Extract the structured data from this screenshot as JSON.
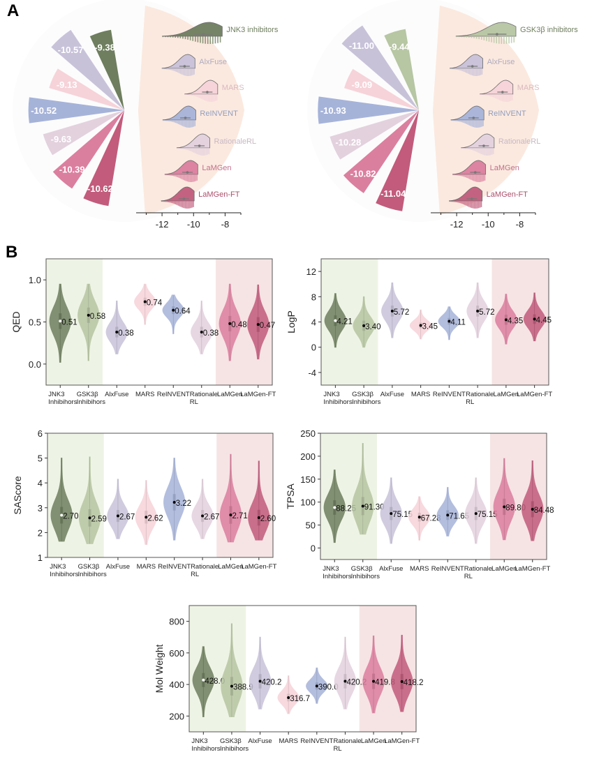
{
  "panels": {
    "a_label": "A",
    "b_label": "B"
  },
  "colors": {
    "JNK3": "#6e7e5e",
    "GSK3": "#b7c6a3",
    "AlxFuse": "#c8c2d9",
    "MARS": "#f6d3d9",
    "ReINVENT": "#a6b3d9",
    "RationaleRL": "#e3d1de",
    "LaMGen": "#db7f9f",
    "LaMGenFT": "#c25b7c",
    "green_band": "#eef4e5",
    "pink_band": "#f6e4e4",
    "fan_bg": "#fbe9df"
  },
  "chart_data": [
    {
      "type": "radial-bar-ridgeline",
      "panel": "A-left",
      "xlabel": "",
      "xticks": [
        -12,
        -10,
        -8
      ],
      "xlim": [
        -13.2,
        -7.0
      ],
      "series": [
        {
          "name": "JNK3 inhibitors",
          "color_key": "JNK3",
          "mean": -9.38
        },
        {
          "name": "AlxFuse",
          "color_key": "AlxFuse",
          "mean": -10.57
        },
        {
          "name": "MARS",
          "color_key": "MARS",
          "mean": -9.13
        },
        {
          "name": "ReINVENT",
          "color_key": "ReINVENT",
          "mean": -10.52
        },
        {
          "name": "RationaleRL",
          "color_key": "RationaleRL",
          "mean": -9.63
        },
        {
          "name": "LaMGen",
          "color_key": "LaMGen",
          "mean": -10.39
        },
        {
          "name": "LaMGen-FT",
          "color_key": "LaMGenFT",
          "mean": -10.62
        }
      ]
    },
    {
      "type": "radial-bar-ridgeline",
      "panel": "A-right",
      "xlabel": "",
      "xticks": [
        -12,
        -10,
        -8
      ],
      "xlim": [
        -13.2,
        -7.0
      ],
      "series": [
        {
          "name": "GSK3β inhibitors",
          "color_key": "GSK3",
          "mean": -9.44
        },
        {
          "name": "AlxFuse",
          "color_key": "AlxFuse",
          "mean": -11.0
        },
        {
          "name": "MARS",
          "color_key": "MARS",
          "mean": -9.09
        },
        {
          "name": "ReINVENT",
          "color_key": "ReINVENT",
          "mean": -10.93
        },
        {
          "name": "RationaleRL",
          "color_key": "RationaleRL",
          "mean": -10.28
        },
        {
          "name": "LaMGen",
          "color_key": "LaMGen",
          "mean": -10.82
        },
        {
          "name": "LaMGen-FT",
          "color_key": "LaMGenFT",
          "mean": -11.04
        }
      ]
    },
    {
      "type": "violin",
      "ylabel": "QED",
      "ylim": [
        -0.25,
        1.25
      ],
      "yticks": [
        0.0,
        0.5,
        1.0
      ],
      "tick_format": "1",
      "categories": [
        "JNK3\nInhibihors",
        "GSK3β\nInhibihors",
        "AlxFuse",
        "MARS",
        "ReINVENT",
        "Rationale\nRL",
        "LaMGen",
        "LaMGen-FT"
      ],
      "values": [
        0.51,
        0.58,
        0.38,
        0.74,
        0.64,
        0.38,
        0.48,
        0.47
      ],
      "labels": [
        "0.51",
        "0.58",
        "0.38",
        "0.74",
        "0.64",
        "0.38",
        "0.48",
        "0.47"
      ],
      "ranges": [
        [
          0.02,
          0.95
        ],
        [
          0.04,
          0.95
        ],
        [
          0.12,
          0.75
        ],
        [
          0.47,
          0.95
        ],
        [
          0.36,
          0.82
        ],
        [
          0.12,
          0.75
        ],
        [
          0.04,
          0.95
        ],
        [
          0.06,
          0.94
        ]
      ]
    },
    {
      "type": "violin",
      "ylabel": "LogP",
      "ylim": [
        -6,
        14
      ],
      "yticks": [
        -4,
        0,
        4,
        8,
        12
      ],
      "tick_format": "0",
      "categories": [
        "JNK3\nInhibihors",
        "GSK3β\nInhibihors",
        "AlxFuse",
        "MARS",
        "ReINVENT",
        "Rationale\nRL",
        "LaMGen",
        "LaMGen-FT"
      ],
      "values": [
        4.21,
        3.4,
        5.72,
        3.45,
        4.11,
        5.72,
        4.35,
        4.45
      ],
      "labels": [
        "4.21",
        "3.40",
        "5.72",
        "3.45",
        "4.11",
        "5.72",
        "4.35",
        "4.45"
      ],
      "ranges": [
        [
          0.0,
          8.5
        ],
        [
          0.0,
          8.0
        ],
        [
          1.5,
          10.2
        ],
        [
          1.3,
          5.9
        ],
        [
          1.2,
          6.4
        ],
        [
          1.5,
          10.2
        ],
        [
          0.5,
          8.4
        ],
        [
          1.0,
          8.6
        ]
      ]
    },
    {
      "type": "violin",
      "ylabel": "SAScore",
      "ylim": [
        1,
        6
      ],
      "yticks": [
        1,
        2,
        3,
        4,
        5,
        6
      ],
      "tick_format": "0",
      "categories": [
        "JNK3\nInhibihors",
        "GSK3β\nInhibihors",
        "AlxFuse",
        "MARS",
        "ReINVENT",
        "Rationale\nRL",
        "LaMGen",
        "LaMGen-FT"
      ],
      "values": [
        2.7,
        2.59,
        2.67,
        2.62,
        3.22,
        2.67,
        2.71,
        2.6
      ],
      "labels": [
        "2.70",
        "2.59",
        "2.67",
        "2.62",
        "3.22",
        "2.67",
        "2.71",
        "2.60"
      ],
      "ranges": [
        [
          1.65,
          5.0
        ],
        [
          1.55,
          5.05
        ],
        [
          1.75,
          4.15
        ],
        [
          1.52,
          4.1
        ],
        [
          1.7,
          5.0
        ],
        [
          1.75,
          4.15
        ],
        [
          1.62,
          5.15
        ],
        [
          1.7,
          4.88
        ]
      ]
    },
    {
      "type": "violin",
      "ylabel": "TPSA",
      "ylim": [
        -25,
        250
      ],
      "yticks": [
        0,
        50,
        100,
        150,
        200,
        250
      ],
      "tick_format": "0",
      "categories": [
        "JNK3\nInhibihors",
        "GSK3β\nInhibihors",
        "AlxFuse",
        "MARS",
        "ReINVENT",
        "Rationale\nRL",
        "LaMGen",
        "LaMGen-FT"
      ],
      "values": [
        88.25,
        91.3,
        75.15,
        67.28,
        71.65,
        75.15,
        89.8,
        84.48
      ],
      "labels": [
        "88.25",
        "91.30",
        "75.15",
        "67.28",
        "71.65",
        "75.15",
        "89.80",
        "84.48"
      ],
      "ranges": [
        [
          12,
          170
        ],
        [
          30,
          228
        ],
        [
          10,
          153
        ],
        [
          17,
          112
        ],
        [
          26,
          132
        ],
        [
          10,
          153
        ],
        [
          18,
          195
        ],
        [
          16,
          190
        ]
      ]
    },
    {
      "type": "violin",
      "ylabel": "Mol Weight",
      "ylim": [
        100,
        900
      ],
      "yticks": [
        200,
        400,
        600,
        800
      ],
      "tick_format": "0",
      "categories": [
        "JNK3\nInhibihors",
        "GSK3β\nInhibihors",
        "AlxFuse",
        "MARS",
        "ReINVENT",
        "Rationale\nRL",
        "LaMGen",
        "LaMGen-FT"
      ],
      "values": [
        428.0,
        388.9,
        420.2,
        316.7,
        390.0,
        420.2,
        419.8,
        418.2
      ],
      "labels": [
        "428.0",
        "388.9",
        "420.2",
        "316.7",
        "390.0",
        "420.2",
        "419.8",
        "418.2"
      ],
      "ranges": [
        [
          195,
          640
        ],
        [
          195,
          785
        ],
        [
          245,
          700
        ],
        [
          215,
          455
        ],
        [
          280,
          505
        ],
        [
          245,
          700
        ],
        [
          220,
          708
        ],
        [
          228,
          712
        ]
      ]
    }
  ]
}
